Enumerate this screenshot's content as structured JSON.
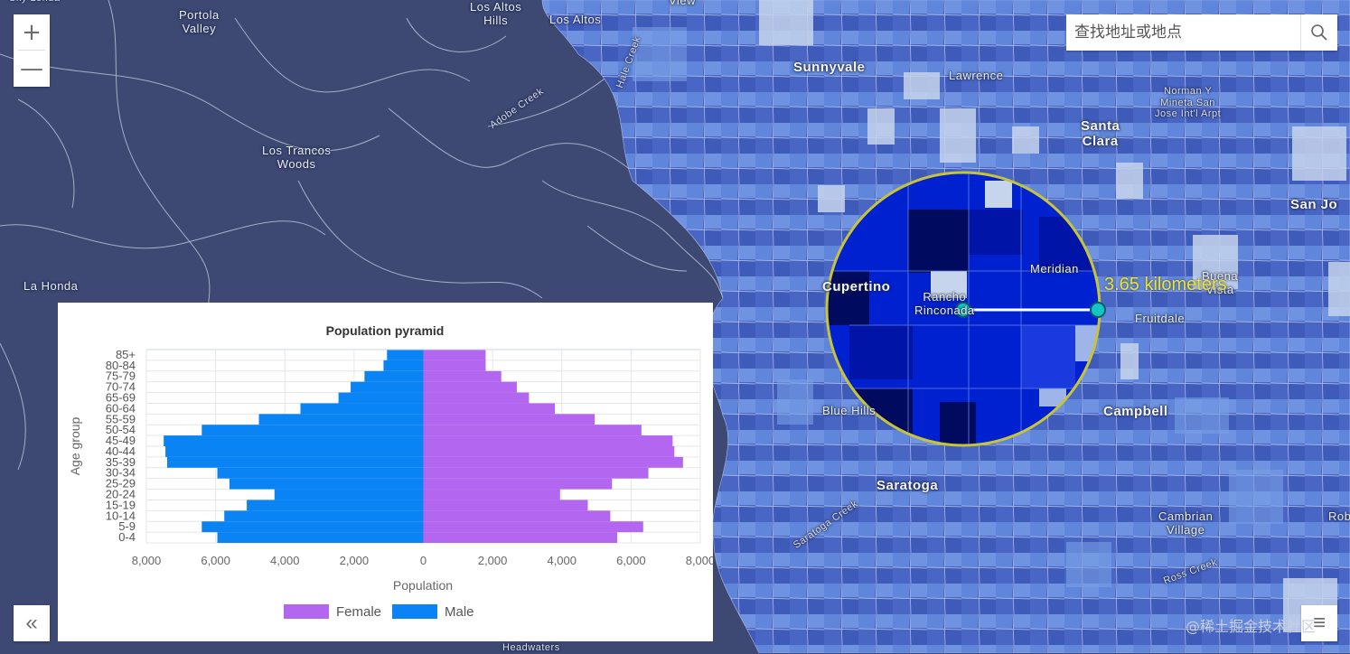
{
  "map": {
    "labels": [
      {
        "id": "sky-londa",
        "text": "Sky Londa",
        "cls": "small"
      },
      {
        "id": "portola-valley",
        "text": "Portola\nValley",
        "cls": ""
      },
      {
        "id": "los-altos-hills",
        "text": "Los Altos\nHills",
        "cls": ""
      },
      {
        "id": "los-altos",
        "text": "Los Altos",
        "cls": ""
      },
      {
        "id": "view",
        "text": "View",
        "cls": ""
      },
      {
        "id": "sunnyvale",
        "text": "Sunnyvale",
        "cls": "city"
      },
      {
        "id": "lawrence",
        "text": "Lawrence",
        "cls": ""
      },
      {
        "id": "santa-clara",
        "text": "Santa\nClara",
        "cls": "city"
      },
      {
        "id": "airport",
        "text": "Norman Y\nMineta San\nJose Int'l Arpt",
        "cls": "small"
      },
      {
        "id": "san-jose",
        "text": "San Jo",
        "cls": "city"
      },
      {
        "id": "los-trancos-woods",
        "text": "Los Trancos\nWoods",
        "cls": ""
      },
      {
        "id": "la-honda",
        "text": "La Honda",
        "cls": ""
      },
      {
        "id": "adobe-creek",
        "text": "Adobe Creek",
        "cls": "small"
      },
      {
        "id": "hale-creek",
        "text": "Hale Creek",
        "cls": "small"
      },
      {
        "id": "cupertino",
        "text": "Cupertino",
        "cls": "city"
      },
      {
        "id": "rancho-rinconada",
        "text": "Rancho\nRinconada",
        "cls": ""
      },
      {
        "id": "meridian",
        "text": "Meridian",
        "cls": ""
      },
      {
        "id": "buena",
        "text": "Buena\nVista",
        "cls": ""
      },
      {
        "id": "fruitdale",
        "text": "Fruitdale",
        "cls": ""
      },
      {
        "id": "blue-hills",
        "text": "Blue Hills",
        "cls": ""
      },
      {
        "id": "campbell",
        "text": "Campbell",
        "cls": "city"
      },
      {
        "id": "saratoga",
        "text": "Saratoga",
        "cls": "city"
      },
      {
        "id": "saratoga-creek",
        "text": "Saratoga Creek",
        "cls": "small"
      },
      {
        "id": "cambrian-village",
        "text": "Cambrian\nVillage",
        "cls": ""
      },
      {
        "id": "ross-creek",
        "text": "Ross Creek",
        "cls": "small"
      },
      {
        "id": "rob",
        "text": "Rob",
        "cls": ""
      },
      {
        "id": "headwaters",
        "text": "Headwaters",
        "cls": "small"
      }
    ],
    "measurement": "3.65 kilometers",
    "colors": {
      "background": "#3d4873",
      "tract_light": "#c8d6ec",
      "tract_mid": "#5a7fd6",
      "tract_dark": "#0018c8",
      "tract_darkest": "#000a5e",
      "buffer_ring": "#c8c43a"
    }
  },
  "controls": {
    "zoom_in_icon": "plus-icon",
    "zoom_out_icon": "minus-icon",
    "zoom_in_symbol": "+",
    "zoom_out_symbol": "—",
    "collapse_symbol": "«",
    "menu_symbol": "≡"
  },
  "search": {
    "placeholder": "查找地址或地点",
    "icon": "search-icon"
  },
  "watermark": "@稀土掘金技术社区",
  "chart_data": {
    "type": "bar",
    "orientation": "horizontal",
    "title": "Population pyramid",
    "xlabel": "Population",
    "ylabel": "Age group",
    "categories": [
      "0-4",
      "5-9",
      "10-14",
      "15-19",
      "20-24",
      "25-29",
      "30-34",
      "35-39",
      "40-44",
      "45-49",
      "50-54",
      "55-59",
      "60-64",
      "65-69",
      "70-74",
      "75-79",
      "80-84",
      "85+"
    ],
    "series": [
      {
        "name": "Female",
        "color": "#b366f0",
        "values": [
          5600,
          6350,
          5400,
          4750,
          3950,
          5450,
          6500,
          7500,
          7250,
          7200,
          6300,
          4950,
          3800,
          3050,
          2700,
          2250,
          1800,
          1800
        ]
      },
      {
        "name": "Male",
        "color": "#0a84f4",
        "values": [
          -5950,
          -6400,
          -5750,
          -5100,
          -4300,
          -5600,
          -5950,
          -7400,
          -7450,
          -7500,
          -6400,
          -4750,
          -3550,
          -2450,
          -2100,
          -1700,
          -1150,
          -1050
        ]
      }
    ],
    "xlim": [
      -8000,
      8000
    ],
    "xticks": [
      "8,000",
      "6,000",
      "4,000",
      "2,000",
      "0",
      "2,000",
      "4,000",
      "6,000",
      "8,000"
    ],
    "legend": [
      "Female",
      "Male"
    ],
    "legend_position": "bottom"
  }
}
